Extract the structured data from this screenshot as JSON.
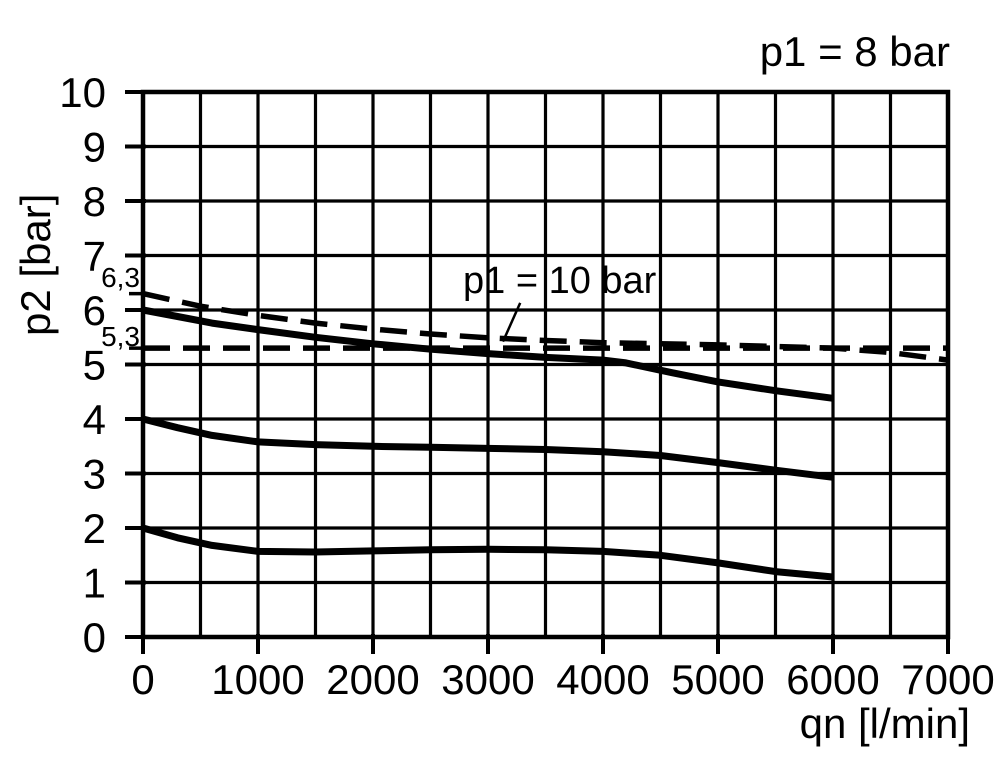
{
  "colors": {
    "foreground": "#000000",
    "background": "#ffffff"
  },
  "chart_data": {
    "type": "line",
    "title": "p1 = 8 bar",
    "xlabel": "qn [l/min]",
    "ylabel": "p2 [bar]",
    "xlim": [
      0,
      7000
    ],
    "ylim": [
      0,
      10
    ],
    "grid": {
      "on": true,
      "x_step": 500,
      "y_step": 1
    },
    "x_ticks": [
      {
        "value": 0,
        "label": "0"
      },
      {
        "value": 1000,
        "label": "1000"
      },
      {
        "value": 2000,
        "label": "2000"
      },
      {
        "value": 3000,
        "label": "3000"
      },
      {
        "value": 4000,
        "label": "4000"
      },
      {
        "value": 5000,
        "label": "5000"
      },
      {
        "value": 6000,
        "label": "6000"
      },
      {
        "value": 7000,
        "label": "7000"
      }
    ],
    "y_ticks": [
      {
        "value": 0,
        "label": "0"
      },
      {
        "value": 1,
        "label": "1"
      },
      {
        "value": 2,
        "label": "2"
      },
      {
        "value": 3,
        "label": "3"
      },
      {
        "value": 4,
        "label": "4"
      },
      {
        "value": 5,
        "label": "5"
      },
      {
        "value": 6,
        "label": "6"
      },
      {
        "value": 7,
        "label": "7"
      },
      {
        "value": 8,
        "label": "8"
      },
      {
        "value": 9,
        "label": "9"
      },
      {
        "value": 10,
        "label": "10"
      }
    ],
    "y_extra_ticks": [
      {
        "value": 6.3,
        "label": "6,3"
      },
      {
        "value": 5.3,
        "label": "5,3"
      }
    ],
    "annotation": {
      "text": "p1 = 10 bar",
      "leader_from": [
        3280,
        6.13
      ],
      "leader_to": [
        3130,
        5.42
      ]
    },
    "series": [
      {
        "name": "solid upper curve (p1 = 8 bar, outlet 6 bar)",
        "style": "solid",
        "points": [
          [
            0,
            6.0
          ],
          [
            300,
            5.88
          ],
          [
            600,
            5.76
          ],
          [
            1000,
            5.64
          ],
          [
            1500,
            5.5
          ],
          [
            2000,
            5.38
          ],
          [
            2500,
            5.28
          ],
          [
            3000,
            5.2
          ],
          [
            3500,
            5.13
          ],
          [
            4000,
            5.08
          ],
          [
            4200,
            5.03
          ],
          [
            4600,
            4.85
          ],
          [
            5000,
            4.68
          ],
          [
            5500,
            4.52
          ],
          [
            6000,
            4.38
          ]
        ]
      },
      {
        "name": "dashed curve p1 = 10 bar (from 6,3 bar)",
        "style": "dashed",
        "points": [
          [
            0,
            6.3
          ],
          [
            500,
            6.07
          ],
          [
            1000,
            5.9
          ],
          [
            1500,
            5.76
          ],
          [
            2000,
            5.65
          ],
          [
            2500,
            5.56
          ],
          [
            3000,
            5.49
          ],
          [
            3500,
            5.44
          ],
          [
            4000,
            5.4
          ],
          [
            4500,
            5.38
          ],
          [
            5000,
            5.36
          ],
          [
            5500,
            5.33
          ],
          [
            6000,
            5.3
          ],
          [
            6500,
            5.22
          ],
          [
            7000,
            5.08
          ]
        ]
      },
      {
        "name": "dashed reference line 5,3 bar",
        "style": "dashed",
        "points": [
          [
            0,
            5.3
          ],
          [
            3500,
            5.3
          ],
          [
            7000,
            5.3
          ]
        ]
      },
      {
        "name": "solid middle curve (outlet 4 bar)",
        "style": "solid",
        "points": [
          [
            0,
            4.0
          ],
          [
            300,
            3.84
          ],
          [
            600,
            3.7
          ],
          [
            1000,
            3.58
          ],
          [
            1500,
            3.53
          ],
          [
            2000,
            3.5
          ],
          [
            2500,
            3.48
          ],
          [
            3000,
            3.46
          ],
          [
            3500,
            3.44
          ],
          [
            4000,
            3.4
          ],
          [
            4500,
            3.33
          ],
          [
            5000,
            3.2
          ],
          [
            5500,
            3.06
          ],
          [
            6000,
            2.93
          ]
        ]
      },
      {
        "name": "solid lower curve (outlet 2 bar)",
        "style": "solid",
        "points": [
          [
            0,
            2.0
          ],
          [
            300,
            1.82
          ],
          [
            600,
            1.68
          ],
          [
            1000,
            1.57
          ],
          [
            1500,
            1.56
          ],
          [
            2000,
            1.58
          ],
          [
            2500,
            1.6
          ],
          [
            3000,
            1.61
          ],
          [
            3500,
            1.6
          ],
          [
            4000,
            1.57
          ],
          [
            4500,
            1.5
          ],
          [
            5000,
            1.36
          ],
          [
            5500,
            1.2
          ],
          [
            6000,
            1.1
          ]
        ]
      }
    ]
  }
}
